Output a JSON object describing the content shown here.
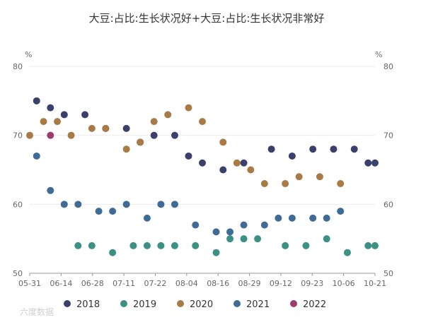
{
  "watermark": "六度数据",
  "chart_data": {
    "type": "scatter",
    "title": "大豆:占比:生长状况好+大豆:占比:生长状况非常好",
    "unit_left": "%",
    "unit_right": "%",
    "xlabel": "",
    "ylabel": "",
    "ylim": [
      50,
      80
    ],
    "yticks": [
      50,
      60,
      70,
      80
    ],
    "x_ticks": [
      "05-31",
      "06-14",
      "06-28",
      "07-11",
      "07-22",
      "08-04",
      "08-16",
      "08-29",
      "09-12",
      "09-23",
      "10-06",
      "10-21"
    ],
    "grid": true,
    "legend_position": "bottom",
    "series": [
      {
        "name": "2018",
        "color": "#3b3f6b",
        "points": [
          [
            1,
            75
          ],
          [
            3,
            74
          ],
          [
            5,
            73
          ],
          [
            8,
            73
          ],
          [
            11,
            71
          ],
          [
            14,
            71
          ],
          [
            16,
            69
          ],
          [
            18,
            70
          ],
          [
            21,
            70
          ],
          [
            23,
            67
          ],
          [
            25,
            66
          ],
          [
            28,
            65
          ],
          [
            31,
            66
          ],
          [
            35,
            68
          ],
          [
            38,
            67
          ],
          [
            41,
            68
          ],
          [
            44,
            68
          ],
          [
            47,
            68
          ],
          [
            49,
            66
          ],
          [
            50,
            66
          ]
        ]
      },
      {
        "name": "2019",
        "color": "#3a9184",
        "points": [
          [
            7,
            54
          ],
          [
            9,
            54
          ],
          [
            12,
            53
          ],
          [
            15,
            54
          ],
          [
            17,
            54
          ],
          [
            19,
            54
          ],
          [
            21,
            54
          ],
          [
            24,
            54
          ],
          [
            27,
            53
          ],
          [
            29,
            55
          ],
          [
            31,
            55
          ],
          [
            33,
            55
          ],
          [
            37,
            54
          ],
          [
            40,
            54
          ],
          [
            43,
            55
          ],
          [
            46,
            53
          ],
          [
            49,
            54
          ],
          [
            50,
            54
          ]
        ]
      },
      {
        "name": "2020",
        "color": "#a87a46",
        "points": [
          [
            0,
            70
          ],
          [
            2,
            72
          ],
          [
            4,
            72
          ],
          [
            6,
            70
          ],
          [
            9,
            71
          ],
          [
            11,
            71
          ],
          [
            14,
            68
          ],
          [
            16,
            69
          ],
          [
            18,
            72
          ],
          [
            20,
            73
          ],
          [
            23,
            74
          ],
          [
            25,
            72
          ],
          [
            28,
            69
          ],
          [
            30,
            66
          ],
          [
            32,
            65
          ],
          [
            34,
            63
          ],
          [
            37,
            63
          ],
          [
            39,
            64
          ],
          [
            42,
            64
          ],
          [
            45,
            63
          ]
        ]
      },
      {
        "name": "2021",
        "color": "#3f6b95",
        "points": [
          [
            1,
            67
          ],
          [
            3,
            62
          ],
          [
            5,
            60
          ],
          [
            7,
            60
          ],
          [
            10,
            59
          ],
          [
            12,
            59
          ],
          [
            14,
            60
          ],
          [
            17,
            58
          ],
          [
            19,
            60
          ],
          [
            21,
            60
          ],
          [
            24,
            57
          ],
          [
            27,
            56
          ],
          [
            29,
            56
          ],
          [
            31,
            57
          ],
          [
            34,
            57
          ],
          [
            36,
            58
          ],
          [
            38,
            58
          ],
          [
            41,
            58
          ],
          [
            43,
            58
          ],
          [
            45,
            59
          ]
        ]
      },
      {
        "name": "2022",
        "color": "#9c3d6e",
        "points": [
          [
            3,
            70
          ]
        ]
      }
    ]
  }
}
